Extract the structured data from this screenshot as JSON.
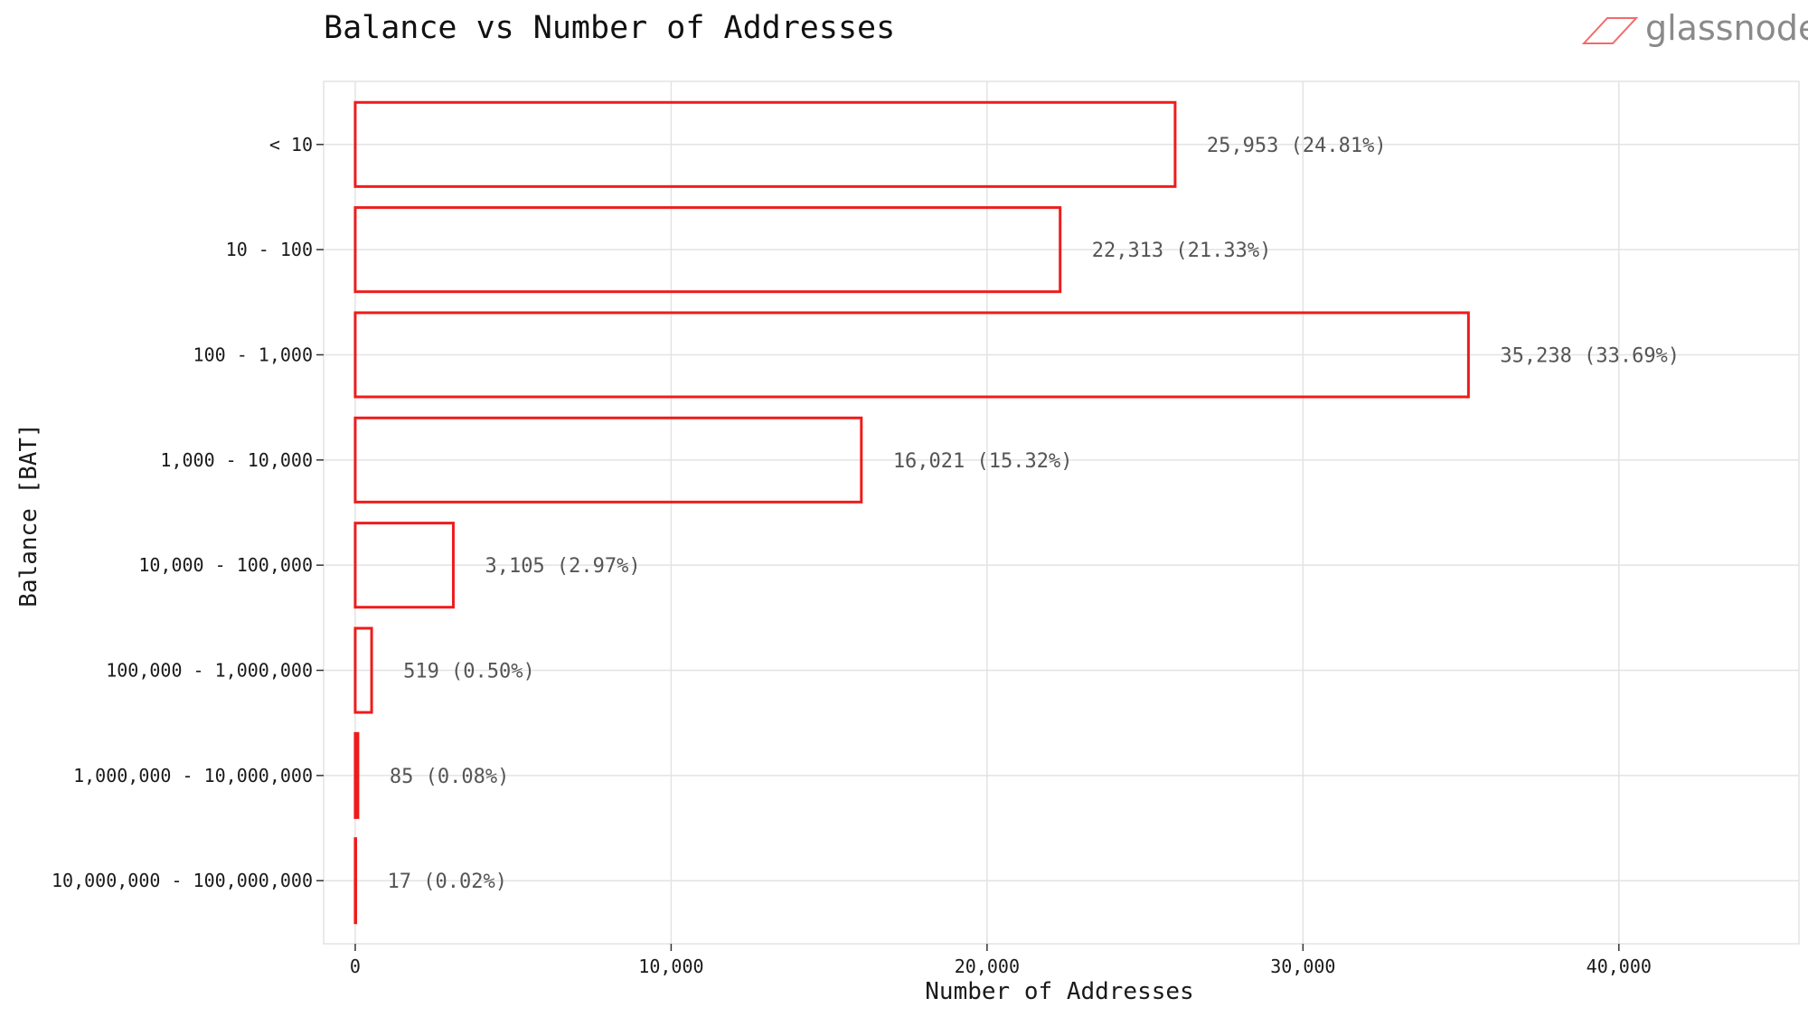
{
  "chart_data": {
    "type": "bar",
    "orientation": "horizontal",
    "title": "Balance vs Number of Addresses",
    "xlabel": "Number of Addresses",
    "ylabel": "Balance [BAT]",
    "categories": [
      "< 10",
      "10 - 100",
      "100 - 1,000",
      "1,000 - 10,000",
      "10,000 - 100,000",
      "100,000 - 1,000,000",
      "1,000,000 - 10,000,000",
      "10,000,000 - 100,000,000"
    ],
    "values": [
      25953,
      22313,
      35238,
      16021,
      3105,
      519,
      85,
      17
    ],
    "data_labels": [
      "25,953 (24.81%)",
      "22,313 (21.33%)",
      "35,238 (33.69%)",
      "16,021 (15.32%)",
      "3,105 (2.97%)",
      "519 (0.50%)",
      "85 (0.08%)",
      "17 (0.02%)"
    ],
    "xticks": [
      0,
      10000,
      20000,
      30000,
      40000
    ],
    "xtick_labels": [
      "0",
      "10,000",
      "20,000",
      "30,000",
      "40,000"
    ],
    "xlim": [
      -1000,
      45700
    ],
    "grid": true,
    "bar_style": "outline",
    "bar_color": "#ee1c1c"
  },
  "brand": {
    "name": "glassnode",
    "logo_color": "#f26b6b"
  }
}
